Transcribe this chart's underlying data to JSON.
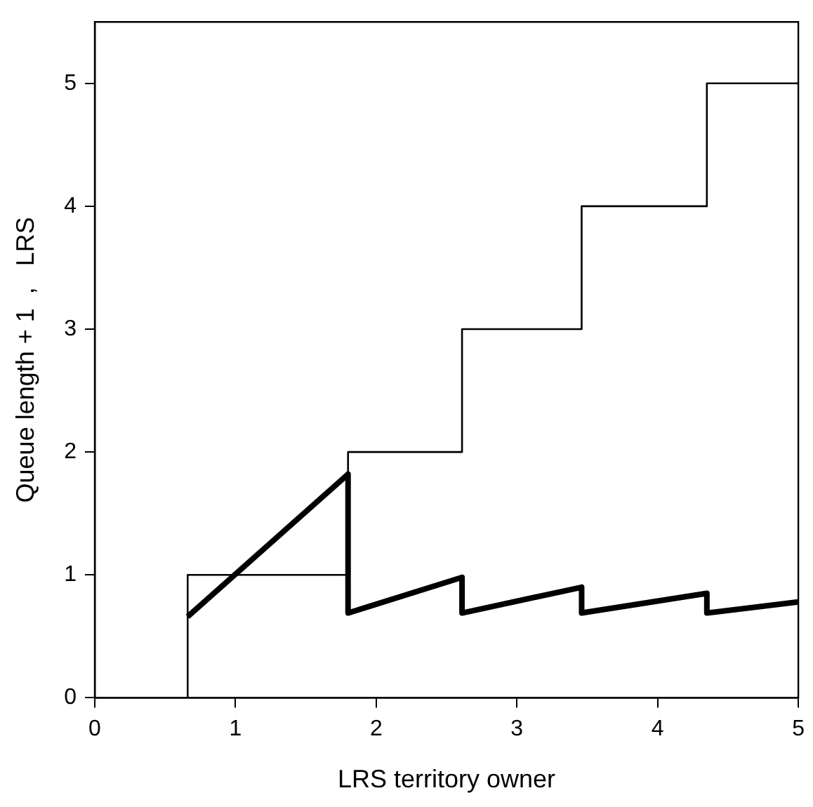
{
  "chart_data": {
    "type": "line",
    "xlabel": "LRS territory owner",
    "ylabel": "Queue length + 1  ,   LRS",
    "xlim": [
      0,
      5
    ],
    "ylim": [
      0,
      5.5
    ],
    "xticks": [
      0,
      1,
      2,
      3,
      4,
      5
    ],
    "yticks": [
      0,
      1,
      2,
      3,
      4,
      5
    ],
    "grid": false,
    "legend": false,
    "marker": "none",
    "series": [
      {
        "type": "step",
        "color": "#000000",
        "x": [
          0.66,
          0.66,
          1.8,
          2.61,
          3.46,
          4.35,
          5
        ],
        "values": [
          0,
          1,
          2,
          3,
          4,
          5,
          5
        ]
      },
      {
        "type": "line",
        "color": "#000000",
        "x": [
          0.66,
          1.8,
          1.8,
          2.61,
          2.61,
          3.46,
          3.46,
          4.35,
          4.35,
          5
        ],
        "values": [
          0.66,
          1.82,
          0.69,
          0.98,
          0.69,
          0.9,
          0.69,
          0.85,
          0.69,
          0.78
        ]
      }
    ]
  }
}
